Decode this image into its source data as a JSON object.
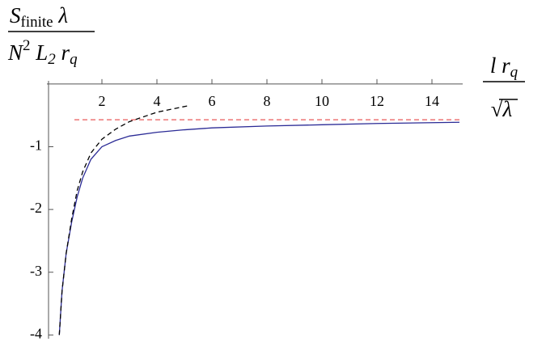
{
  "chart_data": {
    "type": "line",
    "y_label": {
      "numerator": [
        {
          "text": "S"
        },
        {
          "sub": "finite"
        },
        {
          "text": " λ"
        }
      ],
      "denominator": [
        {
          "text": "N"
        },
        {
          "sup": "2"
        },
        {
          "text": "  L"
        },
        {
          "sub": "2"
        },
        {
          "text": " r"
        },
        {
          "sub": "q"
        }
      ]
    },
    "x_label": {
      "numerator": [
        {
          "text": "l r"
        },
        {
          "sub": "q"
        }
      ],
      "denominator": [
        {
          "text": "√λ"
        }
      ]
    },
    "xlim": [
      0,
      15
    ],
    "ylim": [
      -4.06,
      0.05
    ],
    "xticks": [
      2,
      4,
      6,
      8,
      10,
      12,
      14
    ],
    "yticks": [
      -1,
      -2,
      -3,
      -4
    ],
    "series": [
      {
        "color": "#2b2b96",
        "dash": false,
        "x": [
          0.45,
          0.55,
          0.7,
          0.9,
          1.1,
          1.3,
          1.6,
          2,
          2.5,
          3,
          4,
          5,
          6,
          8,
          10,
          12,
          15
        ],
        "values": [
          -4,
          -3.3,
          -2.7,
          -2.2,
          -1.8,
          -1.5,
          -1.2,
          -1.0,
          -0.9,
          -0.83,
          -0.77,
          -0.73,
          -0.7,
          -0.67,
          -0.65,
          -0.63,
          -0.61
        ]
      },
      {
        "color": "#000000",
        "dash": true,
        "x": [
          0.45,
          0.55,
          0.7,
          0.9,
          1.1,
          1.3,
          1.6,
          2,
          2.5,
          3,
          4,
          5.1
        ],
        "values": [
          -4,
          -3.3,
          -2.7,
          -2.15,
          -1.7,
          -1.4,
          -1.1,
          -0.88,
          -0.72,
          -0.6,
          -0.45,
          -0.35
        ]
      },
      {
        "color": "#e85a5a",
        "dash": true,
        "x": [
          1,
          15
        ],
        "values": [
          -0.57,
          -0.57
        ]
      }
    ]
  }
}
